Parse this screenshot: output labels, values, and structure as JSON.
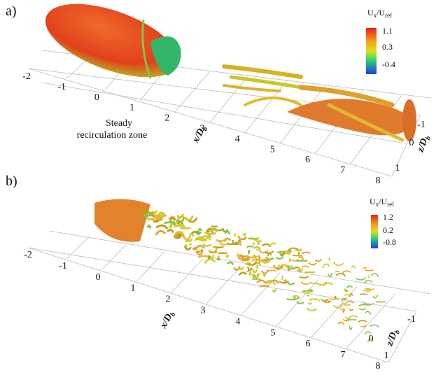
{
  "panels": [
    {
      "label": "a)",
      "colorbar": {
        "title": [
          "U",
          "x",
          "/U",
          "ref"
        ],
        "ticks": [
          1.1,
          0.3,
          -0.4
        ]
      },
      "x_axis": {
        "label": [
          "x/D",
          "b"
        ],
        "ticks": [
          -2,
          -1,
          0,
          1,
          2,
          3,
          4,
          5,
          6,
          7,
          8
        ]
      },
      "z_axis": {
        "label": [
          "z/D",
          "b"
        ],
        "ticks": [
          -1,
          0,
          1
        ]
      },
      "annotation": [
        "Steady",
        "recirculation zone"
      ]
    },
    {
      "label": "b)",
      "colorbar": {
        "title": [
          "U",
          "x",
          "/U",
          "ref"
        ],
        "ticks": [
          1.2,
          0.2,
          -0.8
        ]
      },
      "x_axis": {
        "label": [
          "x/D",
          "b"
        ],
        "ticks": [
          -2,
          -1,
          0,
          1,
          2,
          3,
          4,
          5,
          6,
          7,
          8
        ]
      },
      "z_axis": {
        "label": [
          "z/D",
          "b"
        ],
        "ticks": [
          -1,
          0,
          1
        ]
      }
    }
  ]
}
